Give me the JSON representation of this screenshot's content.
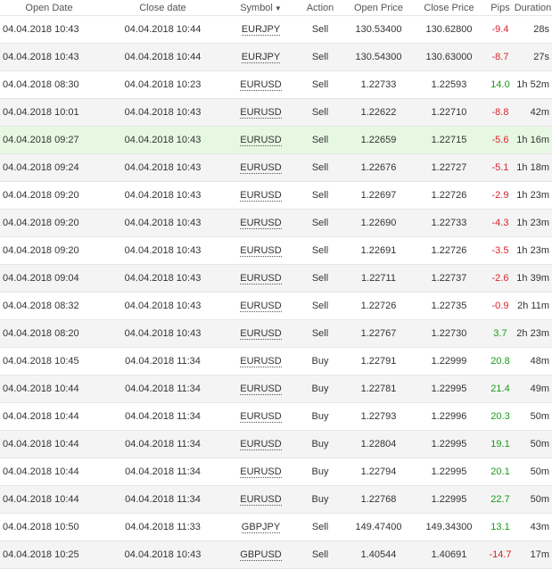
{
  "columns": {
    "open_date": "Open Date",
    "close_date": "Close date",
    "symbol": "Symbol",
    "action": "Action",
    "open_price": "Open Price",
    "close_price": "Close Price",
    "pips": "Pips",
    "duration": "Duration"
  },
  "colors": {
    "negative": "#d9232b",
    "positive": "#1a9b1a",
    "highlight": "#e7f8e2"
  },
  "rows": [
    {
      "open": "04.04.2018 10:43",
      "close": "04.04.2018 10:44",
      "symbol": "EURJPY",
      "action": "Sell",
      "open_price": "130.53400",
      "close_price": "130.62800",
      "pips": "-9.4",
      "duration": "28s"
    },
    {
      "open": "04.04.2018 10:43",
      "close": "04.04.2018 10:44",
      "symbol": "EURJPY",
      "action": "Sell",
      "open_price": "130.54300",
      "close_price": "130.63000",
      "pips": "-8.7",
      "duration": "27s"
    },
    {
      "open": "04.04.2018 08:30",
      "close": "04.04.2018 10:23",
      "symbol": "EURUSD",
      "action": "Sell",
      "open_price": "1.22733",
      "close_price": "1.22593",
      "pips": "14.0",
      "duration": "1h 52m"
    },
    {
      "open": "04.04.2018 10:01",
      "close": "04.04.2018 10:43",
      "symbol": "EURUSD",
      "action": "Sell",
      "open_price": "1.22622",
      "close_price": "1.22710",
      "pips": "-8.8",
      "duration": "42m"
    },
    {
      "open": "04.04.2018 09:27",
      "close": "04.04.2018 10:43",
      "symbol": "EURUSD",
      "action": "Sell",
      "open_price": "1.22659",
      "close_price": "1.22715",
      "pips": "-5.6",
      "duration": "1h 16m",
      "highlighted": true
    },
    {
      "open": "04.04.2018 09:24",
      "close": "04.04.2018 10:43",
      "symbol": "EURUSD",
      "action": "Sell",
      "open_price": "1.22676",
      "close_price": "1.22727",
      "pips": "-5.1",
      "duration": "1h 18m"
    },
    {
      "open": "04.04.2018 09:20",
      "close": "04.04.2018 10:43",
      "symbol": "EURUSD",
      "action": "Sell",
      "open_price": "1.22697",
      "close_price": "1.22726",
      "pips": "-2.9",
      "duration": "1h 23m"
    },
    {
      "open": "04.04.2018 09:20",
      "close": "04.04.2018 10:43",
      "symbol": "EURUSD",
      "action": "Sell",
      "open_price": "1.22690",
      "close_price": "1.22733",
      "pips": "-4.3",
      "duration": "1h 23m"
    },
    {
      "open": "04.04.2018 09:20",
      "close": "04.04.2018 10:43",
      "symbol": "EURUSD",
      "action": "Sell",
      "open_price": "1.22691",
      "close_price": "1.22726",
      "pips": "-3.5",
      "duration": "1h 23m"
    },
    {
      "open": "04.04.2018 09:04",
      "close": "04.04.2018 10:43",
      "symbol": "EURUSD",
      "action": "Sell",
      "open_price": "1.22711",
      "close_price": "1.22737",
      "pips": "-2.6",
      "duration": "1h 39m"
    },
    {
      "open": "04.04.2018 08:32",
      "close": "04.04.2018 10:43",
      "symbol": "EURUSD",
      "action": "Sell",
      "open_price": "1.22726",
      "close_price": "1.22735",
      "pips": "-0.9",
      "duration": "2h 11m"
    },
    {
      "open": "04.04.2018 08:20",
      "close": "04.04.2018 10:43",
      "symbol": "EURUSD",
      "action": "Sell",
      "open_price": "1.22767",
      "close_price": "1.22730",
      "pips": "3.7",
      "duration": "2h 23m"
    },
    {
      "open": "04.04.2018 10:45",
      "close": "04.04.2018 11:34",
      "symbol": "EURUSD",
      "action": "Buy",
      "open_price": "1.22791",
      "close_price": "1.22999",
      "pips": "20.8",
      "duration": "48m"
    },
    {
      "open": "04.04.2018 10:44",
      "close": "04.04.2018 11:34",
      "symbol": "EURUSD",
      "action": "Buy",
      "open_price": "1.22781",
      "close_price": "1.22995",
      "pips": "21.4",
      "duration": "49m"
    },
    {
      "open": "04.04.2018 10:44",
      "close": "04.04.2018 11:34",
      "symbol": "EURUSD",
      "action": "Buy",
      "open_price": "1.22793",
      "close_price": "1.22996",
      "pips": "20.3",
      "duration": "50m"
    },
    {
      "open": "04.04.2018 10:44",
      "close": "04.04.2018 11:34",
      "symbol": "EURUSD",
      "action": "Buy",
      "open_price": "1.22804",
      "close_price": "1.22995",
      "pips": "19.1",
      "duration": "50m"
    },
    {
      "open": "04.04.2018 10:44",
      "close": "04.04.2018 11:34",
      "symbol": "EURUSD",
      "action": "Buy",
      "open_price": "1.22794",
      "close_price": "1.22995",
      "pips": "20.1",
      "duration": "50m"
    },
    {
      "open": "04.04.2018 10:44",
      "close": "04.04.2018 11:34",
      "symbol": "EURUSD",
      "action": "Buy",
      "open_price": "1.22768",
      "close_price": "1.22995",
      "pips": "22.7",
      "duration": "50m"
    },
    {
      "open": "04.04.2018 10:50",
      "close": "04.04.2018 11:33",
      "symbol": "GBPJPY",
      "action": "Sell",
      "open_price": "149.47400",
      "close_price": "149.34300",
      "pips": "13.1",
      "duration": "43m"
    },
    {
      "open": "04.04.2018 10:25",
      "close": "04.04.2018 10:43",
      "symbol": "GBPUSD",
      "action": "Sell",
      "open_price": "1.40544",
      "close_price": "1.40691",
      "pips": "-14.7",
      "duration": "17m"
    }
  ]
}
